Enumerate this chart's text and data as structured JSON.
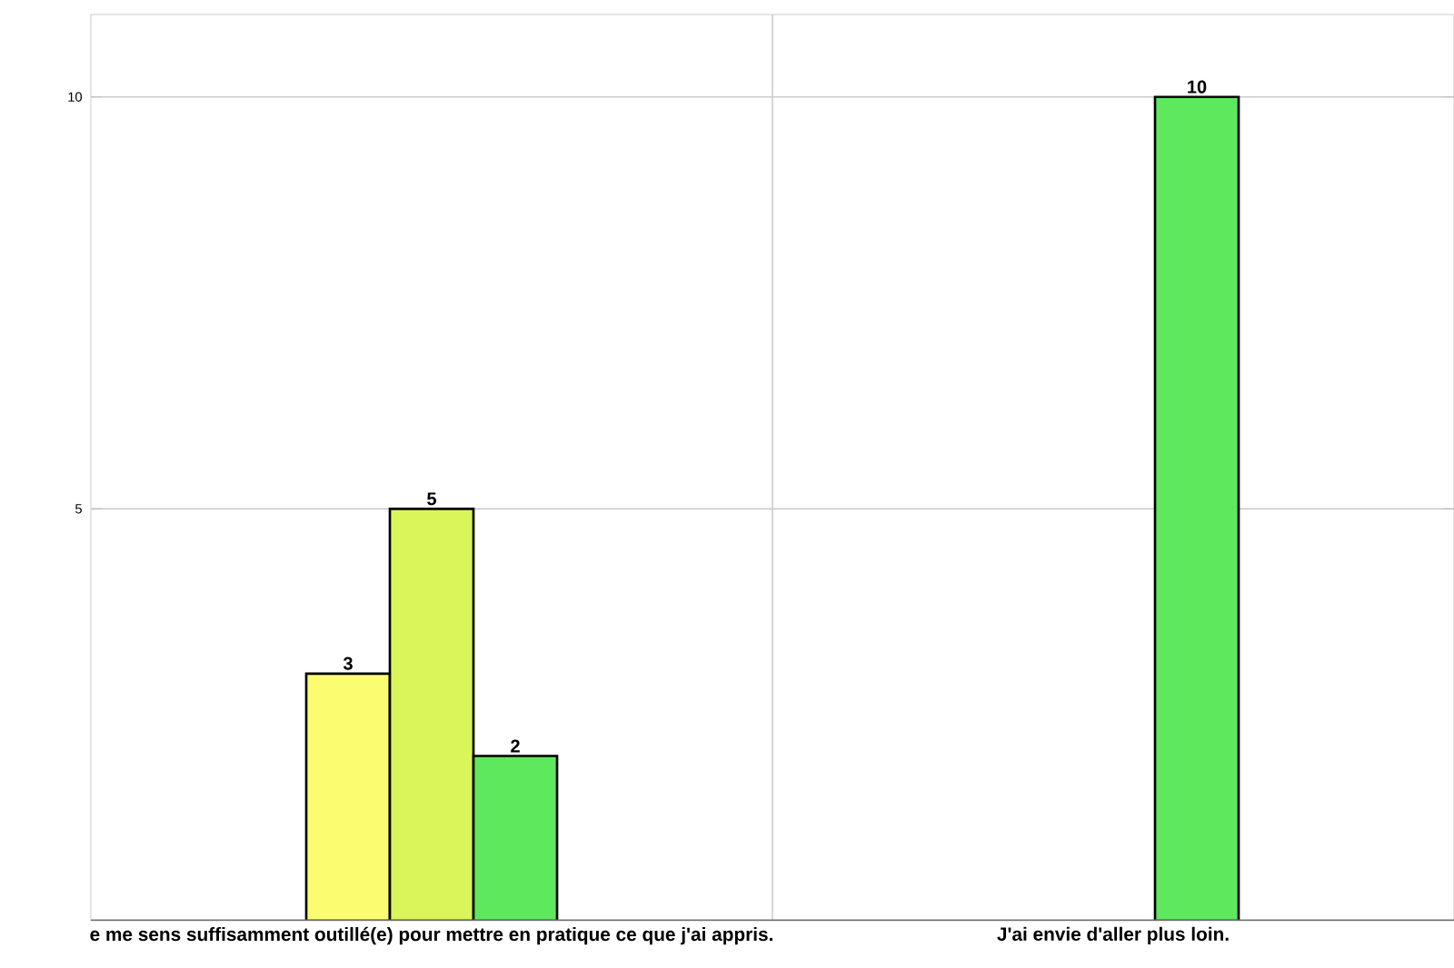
{
  "chart_data": {
    "type": "bar",
    "categories": [
      "e me sens suffisamment outillé(e) pour mettre en pratique ce que j'ai appris.",
      "J'ai envie d'aller plus loin."
    ],
    "series": [
      {
        "color": "#fcfc70",
        "values": [
          3,
          null
        ]
      },
      {
        "color": "#daf55a",
        "values": [
          5,
          null
        ]
      },
      {
        "color": "#5ee85e",
        "values": [
          2,
          10
        ]
      }
    ],
    "ylim": [
      0,
      11
    ],
    "yticks": [
      5,
      10
    ],
    "grid": true,
    "data_labels": true
  }
}
